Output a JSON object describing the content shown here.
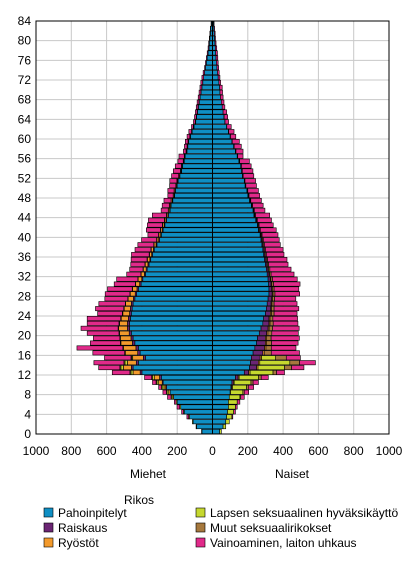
{
  "chart_data": {
    "type": "bar",
    "orientation": "horizontal",
    "layout": "population-pyramid",
    "stacked": true,
    "grid": true,
    "legend_position": "bottom",
    "legend_title": "Rikos",
    "left_label": "Miehet",
    "right_label": "Naiset",
    "xlim": [
      -1000,
      1000
    ],
    "x_ticks": [
      "1000",
      "800",
      "600",
      "400",
      "200",
      "0",
      "200",
      "400",
      "600",
      "800",
      "1000"
    ],
    "ylim": [
      0,
      84
    ],
    "y_ticks": [
      "0",
      "4",
      "8",
      "12",
      "16",
      "20",
      "24",
      "28",
      "32",
      "36",
      "40",
      "44",
      "48",
      "52",
      "56",
      "60",
      "64",
      "68",
      "72",
      "76",
      "80",
      "84"
    ],
    "categories": [
      0,
      1,
      2,
      3,
      4,
      5,
      6,
      7,
      8,
      9,
      10,
      11,
      12,
      13,
      14,
      15,
      16,
      17,
      18,
      19,
      20,
      21,
      22,
      23,
      24,
      25,
      26,
      27,
      28,
      29,
      30,
      31,
      32,
      33,
      34,
      35,
      36,
      37,
      38,
      39,
      40,
      41,
      42,
      43,
      44,
      45,
      46,
      47,
      48,
      49,
      50,
      51,
      52,
      53,
      54,
      55,
      56,
      57,
      58,
      59,
      60,
      61,
      62,
      63,
      64,
      65,
      66,
      67,
      68,
      69,
      70,
      71,
      72,
      73,
      74,
      75,
      76,
      77,
      78,
      79,
      80,
      81,
      82,
      83
    ],
    "series": [
      {
        "name": "Pahoinpitelyt",
        "color": "#0f8fc4",
        "men": [
          60,
          90,
          110,
          130,
          160,
          180,
          200,
          220,
          240,
          260,
          280,
          290,
          400,
          450,
          420,
          380,
          410,
          420,
          440,
          450,
          460,
          470,
          470,
          465,
          460,
          455,
          450,
          440,
          430,
          420,
          405,
          395,
          380,
          370,
          360,
          350,
          340,
          330,
          315,
          300,
          290,
          280,
          270,
          260,
          250,
          240,
          235,
          225,
          215,
          210,
          200,
          195,
          185,
          175,
          170,
          160,
          155,
          145,
          140,
          135,
          125,
          115,
          105,
          95,
          90,
          85,
          80,
          75,
          70,
          65,
          60,
          55,
          50,
          45,
          40,
          35,
          30,
          25,
          20,
          18,
          15,
          12,
          10,
          6
        ],
        "women": [
          40,
          60,
          75,
          80,
          85,
          90,
          90,
          95,
          100,
          105,
          110,
          130,
          180,
          210,
          215,
          220,
          230,
          240,
          250,
          255,
          265,
          275,
          285,
          290,
          300,
          305,
          310,
          315,
          320,
          320,
          318,
          315,
          310,
          305,
          300,
          295,
          290,
          285,
          280,
          275,
          270,
          260,
          255,
          245,
          235,
          230,
          220,
          210,
          200,
          195,
          185,
          180,
          170,
          165,
          160,
          150,
          140,
          130,
          120,
          110,
          100,
          90,
          80,
          70,
          65,
          60,
          55,
          50,
          45,
          42,
          40,
          36,
          32,
          28,
          25,
          22,
          20,
          18,
          16,
          14,
          12,
          10,
          8,
          6
        ]
      },
      {
        "name": "Raiskaus",
        "color": "#6b2574",
        "men": [
          0,
          0,
          0,
          0,
          0,
          0,
          0,
          0,
          0,
          5,
          5,
          10,
          10,
          10,
          12,
          12,
          14,
          14,
          14,
          12,
          12,
          12,
          12,
          12,
          10,
          10,
          10,
          8,
          8,
          8,
          8,
          6,
          6,
          6,
          6,
          5,
          5,
          5,
          5,
          5,
          4,
          4,
          4,
          4,
          3,
          3,
          3,
          3,
          2,
          2,
          2,
          2,
          2,
          2,
          2,
          2,
          1,
          1,
          1,
          1,
          1,
          1,
          1,
          1,
          1,
          1,
          1,
          1,
          0,
          0,
          0,
          0,
          0,
          0,
          0,
          0,
          0,
          0,
          0,
          0,
          0,
          0,
          0,
          0
        ],
        "women": [
          0,
          0,
          0,
          0,
          0,
          0,
          0,
          0,
          0,
          5,
          8,
          15,
          25,
          40,
          45,
          50,
          55,
          55,
          50,
          45,
          42,
          40,
          35,
          30,
          28,
          25,
          22,
          20,
          18,
          15,
          14,
          12,
          10,
          9,
          8,
          7,
          6,
          6,
          5,
          5,
          4,
          4,
          3,
          3,
          3,
          2,
          2,
          2,
          2,
          2,
          1,
          1,
          1,
          1,
          1,
          1,
          1,
          1,
          1,
          0,
          0,
          0,
          0,
          0,
          0,
          0,
          0,
          0,
          0,
          0,
          0,
          0,
          0,
          0,
          0,
          0,
          0,
          0,
          0,
          0,
          0,
          0,
          0,
          0
        ]
      },
      {
        "name": "Ryöstöt",
        "color": "#f39a2c",
        "men": [
          0,
          0,
          0,
          0,
          0,
          0,
          0,
          5,
          8,
          10,
          20,
          30,
          40,
          45,
          50,
          60,
          70,
          70,
          65,
          60,
          55,
          50,
          45,
          40,
          38,
          35,
          32,
          30,
          28,
          25,
          22,
          20,
          18,
          16,
          15,
          14,
          12,
          12,
          11,
          10,
          10,
          9,
          8,
          8,
          7,
          7,
          6,
          6,
          5,
          5,
          5,
          4,
          4,
          4,
          3,
          3,
          3,
          3,
          2,
          2,
          2,
          2,
          2,
          2,
          1,
          1,
          1,
          1,
          1,
          1,
          1,
          1,
          0,
          0,
          0,
          0,
          0,
          0,
          0,
          0,
          0,
          0,
          0,
          0
        ],
        "women": [
          0,
          0,
          0,
          0,
          0,
          0,
          0,
          0,
          2,
          3,
          5,
          6,
          8,
          8,
          8,
          8,
          8,
          8,
          7,
          7,
          7,
          6,
          6,
          6,
          6,
          5,
          5,
          5,
          5,
          4,
          4,
          4,
          4,
          3,
          3,
          3,
          3,
          3,
          3,
          3,
          2,
          2,
          2,
          2,
          2,
          2,
          2,
          2,
          2,
          1,
          1,
          1,
          1,
          1,
          1,
          1,
          1,
          1,
          1,
          1,
          1,
          1,
          0,
          0,
          0,
          0,
          0,
          0,
          0,
          0,
          0,
          0,
          0,
          0,
          0,
          0,
          0,
          0,
          0,
          0,
          0,
          0,
          0,
          0
        ]
      },
      {
        "name": "Lapsen seksuaalinen hyväksikäyttö",
        "color": "#c6d82f",
        "men": [
          2,
          3,
          4,
          5,
          5,
          6,
          6,
          8,
          10,
          10,
          10,
          10,
          12,
          14,
          14,
          5,
          0,
          0,
          0,
          0,
          0,
          0,
          0,
          0,
          0,
          0,
          0,
          0,
          0,
          0,
          0,
          0,
          0,
          0,
          0,
          0,
          0,
          0,
          0,
          0,
          0,
          0,
          0,
          0,
          0,
          0,
          0,
          0,
          0,
          0,
          0,
          0,
          0,
          0,
          0,
          0,
          0,
          0,
          0,
          0,
          0,
          0,
          0,
          0,
          0,
          0,
          0,
          0,
          0,
          0,
          0,
          0,
          0,
          0,
          0,
          0,
          0,
          0,
          0,
          0,
          0,
          0,
          0,
          0
        ],
        "women": [
          10,
          15,
          20,
          30,
          35,
          40,
          50,
          60,
          70,
          80,
          95,
          110,
          130,
          150,
          170,
          80,
          0,
          0,
          0,
          0,
          0,
          0,
          0,
          0,
          0,
          0,
          0,
          0,
          0,
          0,
          0,
          0,
          0,
          0,
          0,
          0,
          0,
          0,
          0,
          0,
          0,
          0,
          0,
          0,
          0,
          0,
          0,
          0,
          0,
          0,
          0,
          0,
          0,
          0,
          0,
          0,
          0,
          0,
          0,
          0,
          0,
          0,
          0,
          0,
          0,
          0,
          0,
          0,
          0,
          0,
          0,
          0,
          0,
          0,
          0,
          0,
          0,
          0,
          0,
          0,
          0,
          0,
          0,
          0
        ]
      },
      {
        "name": "Muut seksuaalirikokset",
        "color": "#a6783d",
        "men": [
          0,
          0,
          0,
          0,
          0,
          0,
          0,
          2,
          3,
          5,
          5,
          5,
          6,
          6,
          6,
          5,
          4,
          4,
          3,
          3,
          3,
          3,
          3,
          3,
          3,
          3,
          2,
          2,
          2,
          2,
          2,
          2,
          2,
          2,
          2,
          2,
          2,
          2,
          2,
          2,
          2,
          2,
          2,
          1,
          1,
          1,
          1,
          1,
          1,
          1,
          1,
          1,
          1,
          1,
          1,
          1,
          1,
          1,
          1,
          1,
          1,
          1,
          1,
          0,
          0,
          0,
          0,
          0,
          0,
          0,
          0,
          0,
          0,
          0,
          0,
          0,
          0,
          0,
          0,
          0,
          0,
          0,
          0,
          0
        ],
        "women": [
          0,
          0,
          0,
          0,
          0,
          0,
          0,
          5,
          8,
          10,
          12,
          15,
          20,
          40,
          55,
          60,
          40,
          30,
          28,
          25,
          22,
          20,
          18,
          16,
          15,
          14,
          12,
          12,
          11,
          10,
          10,
          9,
          8,
          8,
          7,
          7,
          6,
          6,
          6,
          5,
          5,
          5,
          4,
          4,
          4,
          3,
          3,
          3,
          3,
          2,
          2,
          2,
          2,
          2,
          2,
          2,
          1,
          1,
          1,
          1,
          1,
          1,
          1,
          1,
          1,
          0,
          0,
          0,
          0,
          0,
          0,
          0,
          0,
          0,
          0,
          0,
          0,
          0,
          0,
          0,
          0,
          0,
          0,
          0
        ]
      },
      {
        "name": "Vainoaminen, laiton uhkaus",
        "color": "#e12a8a",
        "men": [
          0,
          0,
          0,
          10,
          10,
          15,
          10,
          20,
          20,
          15,
          20,
          40,
          100,
          120,
          170,
          150,
          180,
          260,
          170,
          150,
          180,
          210,
          180,
          190,
          140,
          160,
          150,
          130,
          140,
          140,
          120,
          120,
          80,
          75,
          80,
          90,
          100,
          90,
          90,
          85,
          60,
          80,
          85,
          90,
          80,
          40,
          40,
          40,
          30,
          35,
          35,
          40,
          40,
          40,
          35,
          30,
          30,
          15,
          15,
          15,
          15,
          15,
          10,
          10,
          10,
          10,
          10,
          10,
          10,
          10,
          10,
          10,
          10,
          8,
          5,
          5,
          5,
          5,
          5,
          4,
          3,
          3,
          2,
          2
        ],
        "women": [
          0,
          0,
          0,
          5,
          10,
          10,
          15,
          20,
          25,
          30,
          30,
          40,
          45,
          70,
          90,
          80,
          160,
          140,
          150,
          160,
          150,
          150,
          140,
          140,
          130,
          140,
          130,
          120,
          140,
          140,
          150,
          140,
          130,
          120,
          110,
          110,
          100,
          100,
          90,
          90,
          90,
          90,
          80,
          80,
          80,
          60,
          60,
          60,
          60,
          60,
          60,
          60,
          60,
          60,
          55,
          55,
          30,
          40,
          40,
          40,
          30,
          30,
          25,
          20,
          20,
          20,
          15,
          15,
          15,
          15,
          15,
          10,
          10,
          10,
          10,
          10,
          10,
          10,
          8,
          6,
          5,
          5,
          4,
          3
        ]
      }
    ]
  }
}
